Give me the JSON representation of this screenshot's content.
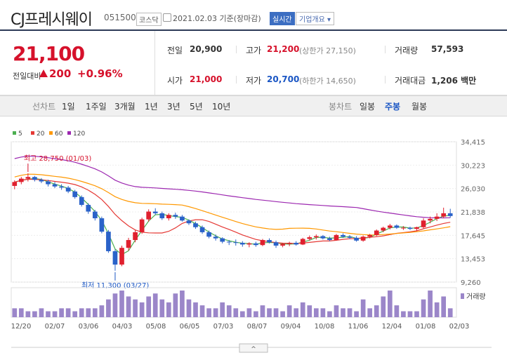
{
  "header": {
    "name": "CJ프레시웨이",
    "code": "051500",
    "market": "코스닥",
    "date": "2021.02.03 기준(장마감)",
    "realtime": "실시간",
    "company_info": "기업개요 ▾"
  },
  "quote": {
    "price": "21,100",
    "change_label": "전일대비",
    "change": "200",
    "change_pct": "+0.96%"
  },
  "stats": {
    "prev_label": "전일",
    "prev": "20,900",
    "high_label": "고가",
    "high": "21,200",
    "upper_limit": "(상한가 27,150)",
    "volume_label": "거래량",
    "volume": "57,593",
    "open_label": "시가",
    "open": "21,000",
    "low_label": "저가",
    "low": "20,700",
    "lower_limit": "(하한가 14,650)",
    "amount_label": "거래대금",
    "amount": "1,206 백만"
  },
  "toolbar": {
    "line_label": "선차트",
    "line_items": [
      "1일",
      "1주일",
      "3개월",
      "1년",
      "3년",
      "5년",
      "10년"
    ],
    "candle_label": "봉차트",
    "candle_items": [
      "일봉",
      "주봉",
      "월봉"
    ],
    "active_candle": "주봉"
  },
  "chart_data": {
    "type": "candlestick",
    "legend": [
      {
        "name": "5",
        "color": "#4caf50"
      },
      {
        "name": "20",
        "color": "#e53935"
      },
      {
        "name": "60",
        "color": "#ff9800"
      },
      {
        "name": "120",
        "color": "#9c27b0"
      }
    ],
    "ylim": [
      9260,
      34415
    ],
    "yticks": [
      "34,415",
      "30,223",
      "26,030",
      "21,838",
      "17,645",
      "13,453",
      "9,260"
    ],
    "xticks": [
      "12/20",
      "02/07",
      "03/06",
      "04/03",
      "05/08",
      "06/05",
      "07/03",
      "08/07",
      "09/04",
      "10/08",
      "11/06",
      "12/04",
      "01/08",
      "02/03"
    ],
    "annotations": {
      "high": "최고 28,750 (01/03)",
      "low": "최저 11,300 (03/27)"
    },
    "volume_label": "거래량",
    "candles": [
      [
        26500,
        27500,
        25900,
        27200
      ],
      [
        27200,
        28100,
        26800,
        27800
      ],
      [
        27800,
        28750,
        27300,
        28100
      ],
      [
        28100,
        28300,
        27300,
        27600
      ],
      [
        27600,
        27900,
        27000,
        27300
      ],
      [
        27300,
        27600,
        26400,
        26800
      ],
      [
        26800,
        27200,
        26100,
        26400
      ],
      [
        26400,
        26800,
        25800,
        26200
      ],
      [
        26200,
        26500,
        25200,
        25500
      ],
      [
        25500,
        25800,
        24200,
        24500
      ],
      [
        24500,
        24800,
        22800,
        23100
      ],
      [
        23100,
        23400,
        21500,
        21900
      ],
      [
        21900,
        22200,
        20300,
        20700
      ],
      [
        20700,
        21000,
        18000,
        18300
      ],
      [
        18300,
        18600,
        14500,
        14800
      ],
      [
        14800,
        15100,
        11300,
        12400
      ],
      [
        12400,
        15800,
        12100,
        15400
      ],
      [
        15400,
        17200,
        14900,
        16800
      ],
      [
        16800,
        18600,
        16400,
        18200
      ],
      [
        18200,
        20800,
        17900,
        20500
      ],
      [
        20500,
        22300,
        20100,
        21900
      ],
      [
        21900,
        22500,
        21300,
        21600
      ],
      [
        21600,
        21900,
        20400,
        20700
      ],
      [
        20700,
        21600,
        20300,
        21300
      ],
      [
        21300,
        21700,
        20600,
        21000
      ],
      [
        21000,
        21300,
        20100,
        20300
      ],
      [
        20300,
        20500,
        19500,
        19800
      ],
      [
        19800,
        20100,
        18800,
        19100
      ],
      [
        19100,
        19400,
        17900,
        18200
      ],
      [
        18200,
        18500,
        17100,
        17400
      ],
      [
        17400,
        17800,
        16700,
        17100
      ],
      [
        17100,
        17300,
        16200,
        16500
      ],
      [
        16500,
        16800,
        15900,
        16400
      ],
      [
        16400,
        16900,
        15800,
        16300
      ],
      [
        16300,
        16600,
        15600,
        16000
      ],
      [
        16000,
        16400,
        15500,
        16200
      ],
      [
        16200,
        16500,
        15600,
        15900
      ],
      [
        15900,
        17000,
        15700,
        16800
      ],
      [
        16800,
        17100,
        16200,
        16400
      ],
      [
        16400,
        16700,
        15400,
        15800
      ],
      [
        15800,
        16300,
        15500,
        16100
      ],
      [
        16100,
        16500,
        15700,
        16300
      ],
      [
        16300,
        16600,
        15800,
        16000
      ],
      [
        16000,
        17200,
        15900,
        17000
      ],
      [
        17000,
        17600,
        16700,
        17300
      ],
      [
        17300,
        17800,
        16900,
        17500
      ],
      [
        17500,
        17700,
        16900,
        17100
      ],
      [
        17100,
        17400,
        16600,
        16800
      ],
      [
        16800,
        17900,
        16700,
        17700
      ],
      [
        17700,
        18000,
        17200,
        17400
      ],
      [
        17400,
        17700,
        17000,
        17200
      ],
      [
        17200,
        17500,
        16500,
        16700
      ],
      [
        16700,
        17600,
        16500,
        17400
      ],
      [
        17400,
        17900,
        17100,
        17700
      ],
      [
        17700,
        18700,
        17500,
        18500
      ],
      [
        18500,
        19200,
        18200,
        19000
      ],
      [
        19000,
        19700,
        18700,
        19400
      ],
      [
        19400,
        19600,
        18800,
        19000
      ],
      [
        19000,
        19300,
        18600,
        19000
      ],
      [
        19000,
        19200,
        18600,
        18800
      ],
      [
        18800,
        19200,
        18400,
        19100
      ],
      [
        19100,
        20700,
        18900,
        20300
      ],
      [
        20300,
        21000,
        19800,
        20600
      ],
      [
        20600,
        21600,
        20200,
        21000
      ],
      [
        21000,
        22600,
        20700,
        21600
      ],
      [
        21600,
        22400,
        20800,
        21100
      ]
    ],
    "volumes": [
      3,
      3,
      2,
      2,
      3,
      2,
      2,
      3,
      3,
      2,
      3,
      3,
      3,
      4,
      6,
      8,
      9,
      7,
      6,
      5,
      7,
      8,
      6,
      5,
      8,
      9,
      6,
      5,
      4,
      3,
      3,
      5,
      4,
      3,
      2,
      3,
      2,
      4,
      3,
      3,
      2,
      4,
      3,
      5,
      4,
      3,
      3,
      2,
      4,
      3,
      3,
      2,
      6,
      3,
      4,
      7,
      9,
      4,
      2,
      2,
      2,
      6,
      9,
      5,
      7,
      3
    ]
  }
}
